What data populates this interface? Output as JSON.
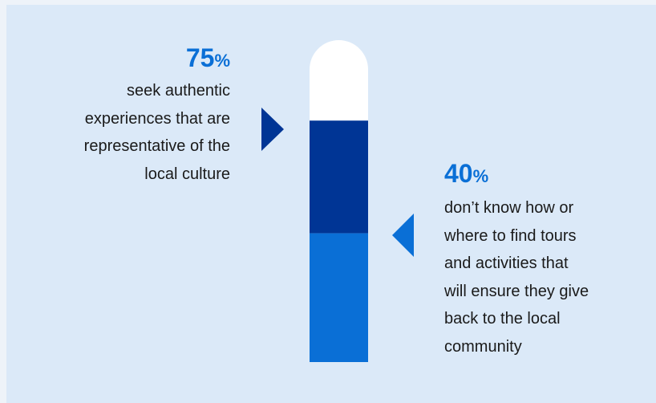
{
  "chart_data": {
    "type": "bar",
    "orientation": "vertical-thermometer",
    "stat_a": {
      "value": 75,
      "label": "75",
      "unit": "%",
      "description": [
        "seek authentic",
        "experiences that are",
        "representative of the",
        "local culture"
      ]
    },
    "stat_b": {
      "value": 40,
      "label": "40",
      "unit": "%",
      "description": [
        "don’t know how or",
        "where to find tours",
        "and activities that",
        "will ensure they give",
        "back to the local",
        "community"
      ]
    },
    "colors": {
      "background": "#dbe9f8",
      "remainder": "#ffffff",
      "stat_a": "#003595",
      "stat_b": "#0a6fd6",
      "pointer_a": "#003595",
      "pointer_b": "#0a6fd6"
    }
  }
}
